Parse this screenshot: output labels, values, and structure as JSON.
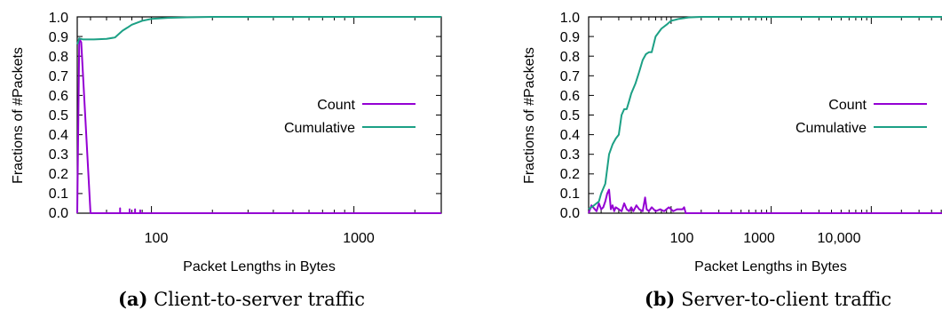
{
  "colors": {
    "count": "#9400d3",
    "cumulative": "#1ca085",
    "axis": "#000000"
  },
  "chart_data": [
    {
      "type": "line",
      "caption_letter": "(a)",
      "caption_text": "Client-to-server traffic",
      "xlabel": "Packet Lengths in Bytes",
      "ylabel": "Fractions of #Packets",
      "xscale": "log",
      "xlim": [
        43,
        2700
      ],
      "ylim": [
        0,
        1
      ],
      "xticks": [
        {
          "v": 100,
          "label": "100"
        },
        {
          "v": 1000,
          "label": "1000"
        }
      ],
      "yticks": [
        "0.0",
        "0.1",
        "0.2",
        "0.3",
        "0.4",
        "0.5",
        "0.6",
        "0.7",
        "0.8",
        "0.9",
        "1.0"
      ],
      "legend_position": "right",
      "series": [
        {
          "name": "Count",
          "key": "count",
          "x": [
            43,
            44,
            45,
            50,
            51,
            70,
            70,
            70,
            78,
            78,
            78,
            83,
            83,
            83,
            88,
            88,
            88,
            2700
          ],
          "y": [
            0,
            0.89,
            0.87,
            0,
            0,
            0,
            0.025,
            0,
            0,
            0.02,
            0,
            0,
            0.02,
            0,
            0,
            0.015,
            0,
            0
          ]
        },
        {
          "name": "Cumulative",
          "key": "cumulative",
          "x": [
            43,
            44,
            46,
            52,
            60,
            66,
            72,
            76,
            80,
            90,
            100,
            120,
            150,
            200,
            2700
          ],
          "y": [
            0.86,
            0.89,
            0.885,
            0.885,
            0.888,
            0.895,
            0.93,
            0.945,
            0.96,
            0.98,
            0.99,
            0.995,
            0.998,
            1.0,
            1.0
          ]
        }
      ]
    },
    {
      "type": "line",
      "caption_letter": "(b)",
      "caption_text": "Server-to-client traffic",
      "xlabel": "Packet Lengths in Bytes",
      "ylabel": "Fractions of #Packets",
      "xscale": "log",
      "xlim": [
        15,
        65000
      ],
      "ylim": [
        0,
        1
      ],
      "xticks": [
        {
          "v": 100,
          "label": "100"
        },
        {
          "v": 1000,
          "label": "1000"
        },
        {
          "v": 10000,
          "label": "10,000"
        }
      ],
      "yticks": [
        "0.0",
        "0.1",
        "0.2",
        "0.3",
        "0.4",
        "0.5",
        "0.6",
        "0.7",
        "0.8",
        "0.9",
        "1.0"
      ],
      "legend_position": "right",
      "series": [
        {
          "name": "Count",
          "key": "count",
          "x": [
            15,
            16,
            18,
            19,
            20,
            21,
            22,
            23,
            24,
            25,
            26,
            27,
            28,
            30,
            32,
            34,
            36,
            38,
            40,
            42,
            45,
            48,
            52,
            55,
            57,
            60,
            64,
            70,
            78,
            85,
            95,
            105,
            115,
            130,
            135,
            140,
            65000
          ],
          "y": [
            0,
            0.04,
            0.01,
            0.05,
            0.02,
            0.03,
            0.06,
            0.1,
            0.12,
            0.02,
            0.04,
            0.01,
            0.03,
            0.02,
            0.01,
            0.05,
            0.02,
            0.01,
            0.03,
            0.01,
            0.04,
            0.02,
            0.01,
            0.08,
            0.02,
            0.01,
            0.03,
            0.01,
            0.02,
            0.01,
            0.03,
            0.01,
            0.02,
            0.02,
            0.03,
            0,
            0
          ]
        },
        {
          "name": "Cumulative",
          "key": "cumulative",
          "x": [
            15,
            17,
            19,
            20,
            22,
            24,
            26,
            28,
            30,
            32,
            34,
            36,
            38,
            40,
            44,
            48,
            52,
            56,
            60,
            64,
            70,
            80,
            90,
            100,
            120,
            150,
            200,
            400,
            1000,
            65000
          ],
          "y": [
            0.02,
            0.04,
            0.06,
            0.1,
            0.15,
            0.3,
            0.35,
            0.38,
            0.4,
            0.5,
            0.53,
            0.53,
            0.57,
            0.61,
            0.66,
            0.72,
            0.78,
            0.81,
            0.82,
            0.82,
            0.9,
            0.94,
            0.96,
            0.98,
            0.99,
            0.997,
            1.0,
            1.0,
            1.0,
            1.0
          ]
        }
      ]
    }
  ]
}
